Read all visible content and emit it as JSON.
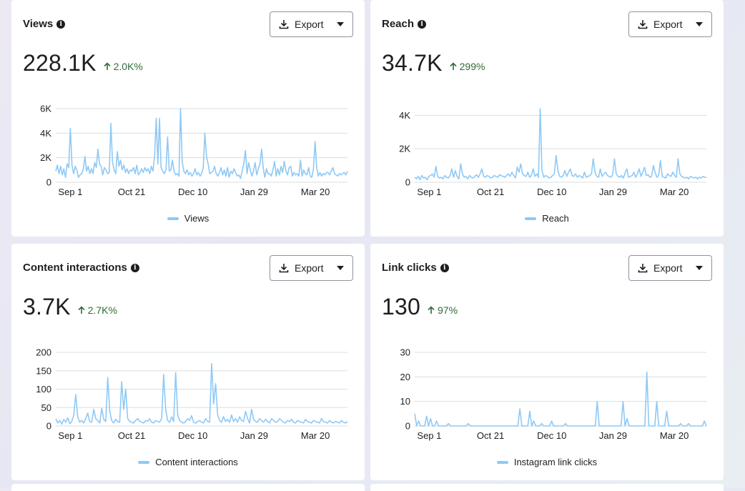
{
  "cards": [
    {
      "title": "Views",
      "export_label": "Export",
      "value": "228.1K",
      "change": "2.0K%",
      "legend": "Views",
      "chart_data": {
        "type": "line",
        "y_ticks": [
          "0",
          "2K",
          "4K",
          "6K"
        ],
        "y_tick_values": [
          0,
          2000,
          4000,
          6000
        ],
        "ylim": [
          0,
          6000
        ],
        "x_ticks": [
          "Sep 1",
          "Oct 21",
          "Dec 10",
          "Jan 29",
          "Mar 20"
        ],
        "x_tick_positions": [
          0.05,
          0.26,
          0.47,
          0.68,
          0.89
        ],
        "series": [
          {
            "name": "Views",
            "values": [
              900,
              1400,
              700,
              1300,
              600,
              1100,
              400,
              1500,
              1200,
              4400,
              1400,
              700,
              1300,
              1000,
              400,
              600,
              700,
              1100,
              2100,
              900,
              1300,
              700,
              1100,
              700,
              1600,
              1200,
              2700,
              1500,
              1300,
              600,
              1200,
              1000,
              700,
              800,
              4800,
              1700,
              1000,
              700,
              2500,
              1300,
              1800,
              1000,
              1400,
              800,
              1100,
              700,
              1000,
              900,
              1200,
              700,
              1400,
              600,
              800,
              1100,
              800,
              1200,
              900,
              1100,
              700,
              1300,
              900,
              2200,
              5200,
              1500,
              5200,
              1200,
              900,
              700,
              1000,
              3700,
              900,
              1000,
              1800,
              900,
              600,
              700,
              500,
              6500,
              1700,
              900,
              700,
              1000,
              600,
              800,
              500,
              700,
              1100,
              600,
              800,
              500,
              700,
              1200,
              4000,
              2100,
              1500,
              700,
              800,
              900,
              1300,
              700,
              500,
              800,
              1200,
              600,
              1000,
              500,
              1200,
              400,
              900,
              700,
              1100,
              800,
              500,
              600,
              300,
              900,
              1500,
              2600,
              700,
              1600,
              1000,
              500,
              900,
              1600,
              600,
              1100,
              1500,
              2700,
              1200,
              400,
              1100,
              700,
              700,
              500,
              1000,
              1700,
              500,
              1100,
              600,
              1300,
              800,
              1700,
              900,
              600,
              1200,
              1300,
              500,
              800,
              600,
              700,
              500,
              1800,
              500,
              1000,
              700,
              600,
              1200,
              500,
              400,
              1100,
              3300,
              1200,
              500,
              800,
              500,
              700,
              600,
              800,
              800,
              600,
              900,
              1200,
              700,
              600,
              500,
              700,
              600,
              700,
              800,
              600,
              900
            ]
          }
        ]
      }
    },
    {
      "title": "Reach",
      "export_label": "Export",
      "value": "34.7K",
      "change": "299%",
      "legend": "Reach",
      "chart_data": {
        "type": "line",
        "y_ticks": [
          "0",
          "2K",
          "4K"
        ],
        "y_tick_values": [
          0,
          2000,
          4000
        ],
        "ylim": [
          0,
          4400
        ],
        "x_ticks": [
          "Sep 1",
          "Oct 21",
          "Dec 10",
          "Jan 29",
          "Mar 20"
        ],
        "x_tick_positions": [
          0.05,
          0.26,
          0.47,
          0.68,
          0.89
        ],
        "series": [
          {
            "name": "Reach",
            "values": [
              300,
              200,
              350,
              150,
              400,
              250,
              300,
              150,
              350,
              400,
              500,
              300,
              950,
              350,
              250,
              300,
              200,
              400,
              300,
              250,
              400,
              800,
              300,
              700,
              350,
              200,
              1100,
              500,
              300,
              350,
              200,
              400,
              300,
              250,
              350,
              450,
              300,
              500,
              800,
              350,
              300,
              400,
              350,
              250,
              300,
              400,
              350,
              300,
              450,
              400,
              350,
              300,
              400,
              500,
              350,
              600,
              400,
              250,
              900,
              600,
              1100,
              500,
              400,
              350,
              600,
              300,
              400,
              800,
              350,
              500,
              300,
              4500,
              700,
              300,
              400,
              350,
              250,
              300,
              400,
              500,
              1600,
              700,
              350,
              300,
              400,
              700,
              350,
              600,
              800,
              400,
              350,
              500,
              300,
              400,
              350,
              250,
              600,
              300,
              350,
              400,
              500,
              1400,
              600,
              350,
              300,
              800,
              350,
              500,
              600,
              400,
              350,
              300,
              450,
              1400,
              500,
              350,
              300,
              400,
              250,
              550,
              800,
              300,
              350,
              400,
              600,
              300,
              500,
              800,
              350,
              600,
              900,
              400,
              450,
              300,
              350,
              1000,
              600,
              300,
              400,
              1300,
              350,
              300,
              250,
              500,
              400,
              350,
              600,
              400,
              300,
              1400,
              500,
              350,
              300,
              250,
              300,
              200,
              350,
              300,
              250,
              300,
              200,
              300,
              250,
              350,
              300,
              300
            ]
          }
        ]
      }
    },
    {
      "title": "Content interactions",
      "export_label": "Export",
      "value": "3.7K",
      "change": "2.7K%",
      "legend": "Content interactions",
      "chart_data": {
        "type": "line",
        "y_ticks": [
          "0",
          "50",
          "100",
          "150",
          "200"
        ],
        "y_tick_values": [
          0,
          50,
          100,
          150,
          200
        ],
        "ylim": [
          0,
          200
        ],
        "x_ticks": [
          "Sep 1",
          "Oct 21",
          "Dec 10",
          "Jan 29",
          "Mar 20"
        ],
        "x_tick_positions": [
          0.05,
          0.26,
          0.47,
          0.68,
          0.89
        ],
        "series": [
          {
            "name": "Content interactions",
            "values": [
              20,
              8,
              15,
              5,
              18,
              10,
              22,
              6,
              12,
              30,
              85,
              25,
              10,
              15,
              8,
              20,
              35,
              12,
              10,
              45,
              20,
              15,
              8,
              48,
              18,
              12,
              132,
              40,
              15,
              8,
              18,
              12,
              10,
              120,
              45,
              100,
              20,
              12,
              10,
              8,
              15,
              20,
              12,
              10,
              8,
              15,
              12,
              20,
              10,
              8,
              15,
              12,
              10,
              20,
              140,
              45,
              15,
              10,
              25,
              12,
              145,
              30,
              15,
              10,
              8,
              12,
              20,
              15,
              28,
              10,
              8,
              12,
              15,
              10,
              8,
              20,
              12,
              10,
              170,
              60,
              115,
              30,
              15,
              10,
              25,
              12,
              18,
              10,
              30,
              12,
              20,
              10,
              25,
              15,
              12,
              40,
              20,
              8,
              45,
              18,
              12,
              10,
              20,
              15,
              10,
              18,
              12,
              8,
              20,
              15,
              10,
              12,
              20,
              15,
              10,
              8,
              15,
              12,
              18,
              10,
              8,
              15,
              12,
              10,
              8,
              18,
              12,
              10,
              8,
              15,
              12,
              10,
              8,
              20,
              12,
              10,
              8,
              15,
              10,
              8,
              12,
              10,
              8,
              15,
              10,
              8,
              12
            ]
          }
        ]
      }
    },
    {
      "title": "Link clicks",
      "export_label": "Export",
      "value": "130",
      "change": "97%",
      "legend": "Instagram link clicks",
      "chart_data": {
        "type": "line",
        "y_ticks": [
          "0",
          "10",
          "20",
          "30"
        ],
        "y_tick_values": [
          0,
          10,
          20,
          30
        ],
        "ylim": [
          0,
          30
        ],
        "x_ticks": [
          "Sep 1",
          "Oct 21",
          "Dec 10",
          "Jan 29",
          "Mar 20"
        ],
        "x_tick_positions": [
          0.05,
          0.26,
          0.47,
          0.68,
          0.89
        ],
        "series": [
          {
            "name": "Instagram link clicks",
            "values": [
              5,
              0,
              2,
              0,
              0,
              0,
              4,
              0,
              3,
              0,
              0,
              2,
              0,
              0,
              0,
              0,
              0,
              1,
              0,
              0,
              0,
              0,
              0,
              0,
              0,
              0,
              0,
              1,
              0,
              0,
              0,
              0,
              0,
              0,
              0,
              0,
              0,
              0,
              0,
              0,
              0,
              0,
              0,
              0,
              0,
              0,
              0,
              0,
              0,
              0,
              0,
              0,
              0,
              7,
              0,
              0,
              0,
              0,
              6,
              0,
              2,
              0,
              0,
              0,
              1,
              0,
              0,
              0,
              0,
              2,
              0,
              0,
              0,
              0,
              0,
              0,
              1,
              0,
              0,
              0,
              0,
              0,
              0,
              0,
              0,
              0,
              0,
              0,
              0,
              0,
              0,
              0,
              10,
              0,
              0,
              0,
              0,
              0,
              0,
              0,
              0,
              0,
              0,
              0,
              0,
              10,
              0,
              3,
              0,
              0,
              0,
              0,
              0,
              0,
              0,
              0,
              0,
              22,
              0,
              0,
              0,
              0,
              10,
              0,
              0,
              0,
              0,
              6,
              0,
              0,
              0,
              0,
              0,
              0,
              1,
              0,
              0,
              0,
              1,
              0,
              0,
              0,
              0,
              0,
              0,
              0,
              2,
              0
            ]
          }
        ]
      }
    }
  ]
}
